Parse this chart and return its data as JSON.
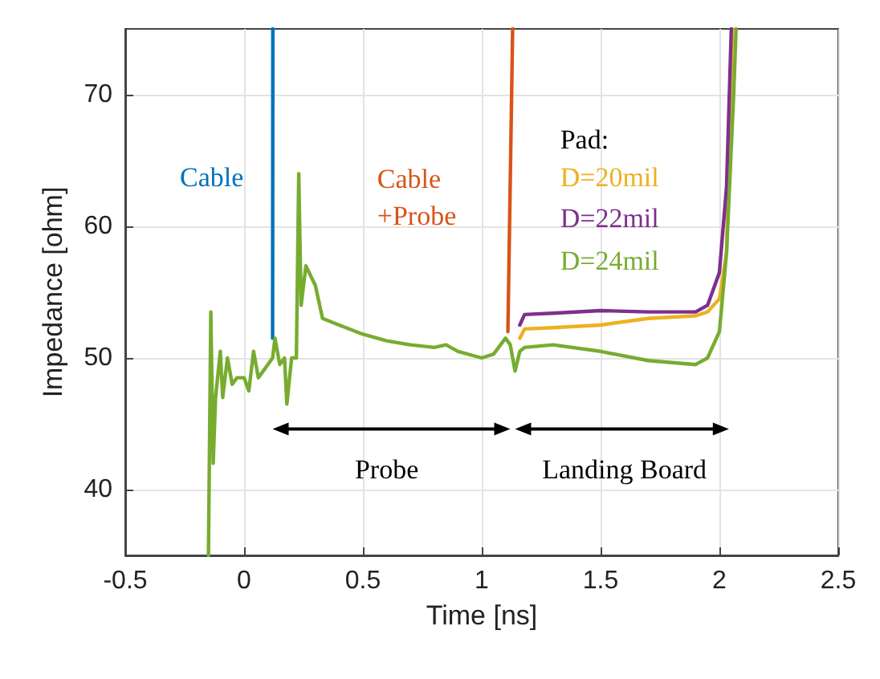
{
  "chart_data": {
    "type": "line",
    "xlabel": "Time [ns]",
    "ylabel": "Impedance [ohm]",
    "xlim": [
      -0.5,
      2.5
    ],
    "xticks": [
      -0.5,
      0,
      0.5,
      1,
      1.5,
      2,
      2.5
    ],
    "ylim": [
      35,
      75
    ],
    "yticks": [
      40,
      50,
      60,
      70
    ],
    "grid": true,
    "legend": false,
    "marker": "none",
    "line_style": "solid",
    "series": [
      {
        "name": "Cable",
        "color": "#0072bd",
        "x": [
          0.12,
          0.121
        ],
        "values": [
          51.5,
          75
        ]
      },
      {
        "name": "Cable +Probe",
        "color": "#d95319",
        "x": [
          1.11,
          1.13
        ],
        "values": [
          52,
          75
        ]
      },
      {
        "name": "D=20mil",
        "color": "#edb120",
        "x": [
          1.16,
          1.18,
          1.3,
          1.5,
          1.7,
          1.9,
          1.95,
          2,
          2.03,
          2.055
        ],
        "values": [
          51.5,
          52.2,
          52.3,
          52.5,
          53,
          53.2,
          53.5,
          54.5,
          58,
          75
        ]
      },
      {
        "name": "D=22mil",
        "color": "#7e2f8e",
        "x": [
          1.16,
          1.18,
          1.3,
          1.5,
          1.7,
          1.9,
          1.95,
          2,
          2.03,
          2.05
        ],
        "values": [
          52.5,
          53.3,
          53.4,
          53.6,
          53.5,
          53.5,
          54,
          56.5,
          63,
          75
        ]
      },
      {
        "name": "D=24mil",
        "color": "#77ac30",
        "x": [
          -0.15,
          -0.14,
          -0.13,
          -0.12,
          -0.1,
          -0.09,
          -0.07,
          -0.05,
          -0.03,
          0,
          0.02,
          0.04,
          0.06,
          0.1,
          0.12,
          0.13,
          0.15,
          0.17,
          0.18,
          0.2,
          0.22,
          0.23,
          0.24,
          0.26,
          0.3,
          0.33,
          0.4,
          0.5,
          0.6,
          0.7,
          0.8,
          0.85,
          0.9,
          1,
          1.05,
          1.1,
          1.12,
          1.14,
          1.16,
          1.18,
          1.3,
          1.5,
          1.7,
          1.9,
          1.95,
          2,
          2.03,
          2.06,
          2.07
        ],
        "values": [
          35,
          53.5,
          42,
          47,
          50.5,
          47,
          50,
          48,
          48.5,
          48.5,
          47.5,
          50.5,
          48.5,
          49.5,
          50,
          51.5,
          49.5,
          50,
          46.5,
          50,
          50,
          64,
          54,
          57,
          55.5,
          53,
          52.5,
          51.8,
          51.3,
          51,
          50.8,
          51,
          50.5,
          50,
          50.3,
          51.5,
          51,
          49,
          50.5,
          50.8,
          51,
          50.5,
          49.8,
          49.5,
          50,
          52,
          58,
          70,
          75
        ]
      }
    ],
    "annotations": [
      "Pad:",
      "Probe",
      "Landing Board"
    ]
  }
}
